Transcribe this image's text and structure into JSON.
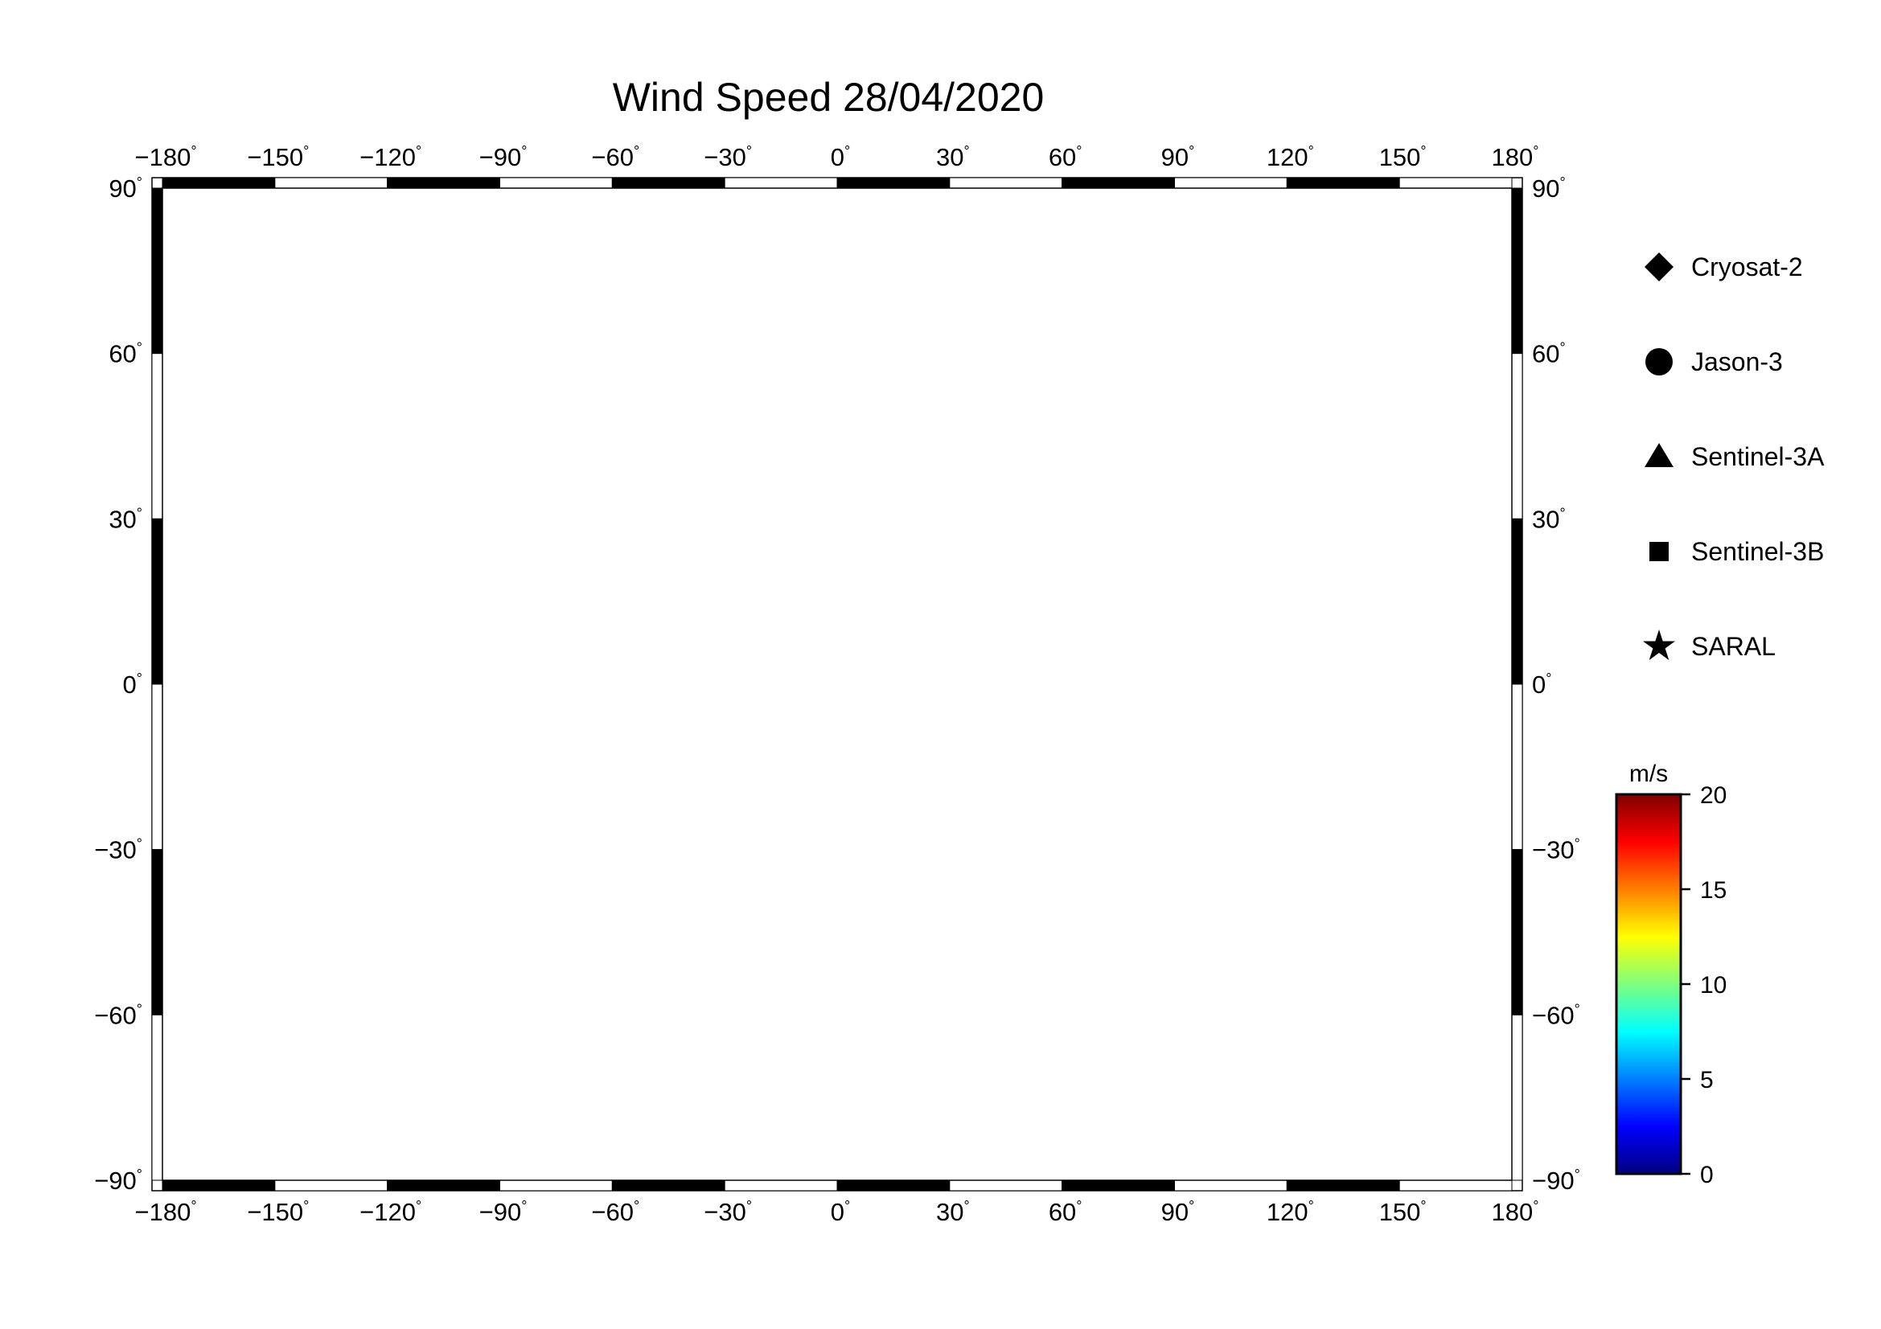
{
  "title": "Wind Speed 28/04/2020",
  "map": {
    "lon_range": [
      -180,
      180
    ],
    "lat_range": [
      -90,
      90
    ],
    "lon_ticks": [
      -180,
      -150,
      -120,
      -90,
      -60,
      -30,
      0,
      30,
      60,
      90,
      120,
      150,
      180
    ],
    "lat_ticks": [
      90,
      60,
      30,
      0,
      -30,
      -60,
      -90
    ],
    "lon_tick_labels": [
      "−180",
      "−150",
      "−120",
      "−90",
      "−60",
      "−30",
      "0",
      "30",
      "60",
      "90",
      "120",
      "150",
      "180"
    ],
    "lat_tick_labels": [
      "90",
      "60",
      "30",
      "0",
      "−30",
      "−60",
      "−90"
    ],
    "degree_symbol": "°",
    "land_color": "#bebebe",
    "ocean_color": "#ffffff",
    "grid": true
  },
  "legend": {
    "items": [
      {
        "label": "Cryosat-2",
        "symbol": "diamond-icon"
      },
      {
        "label": "Jason-3",
        "symbol": "circle-icon"
      },
      {
        "label": "Sentinel-3A",
        "symbol": "triangle-icon"
      },
      {
        "label": "Sentinel-3B",
        "symbol": "square-icon"
      },
      {
        "label": "SARAL",
        "symbol": "star-icon"
      }
    ]
  },
  "colorbar": {
    "unit": "m/s",
    "min": 0,
    "max": 20,
    "ticks": [
      20,
      15,
      10,
      5,
      0
    ],
    "tick_labels": [
      "20",
      "15",
      "10",
      "5",
      "0"
    ],
    "colors": [
      "#00007f",
      "#0000ff",
      "#007fff",
      "#00ffff",
      "#7fff7f",
      "#ffff00",
      "#ff7f00",
      "#ff0000",
      "#7f0000"
    ]
  }
}
